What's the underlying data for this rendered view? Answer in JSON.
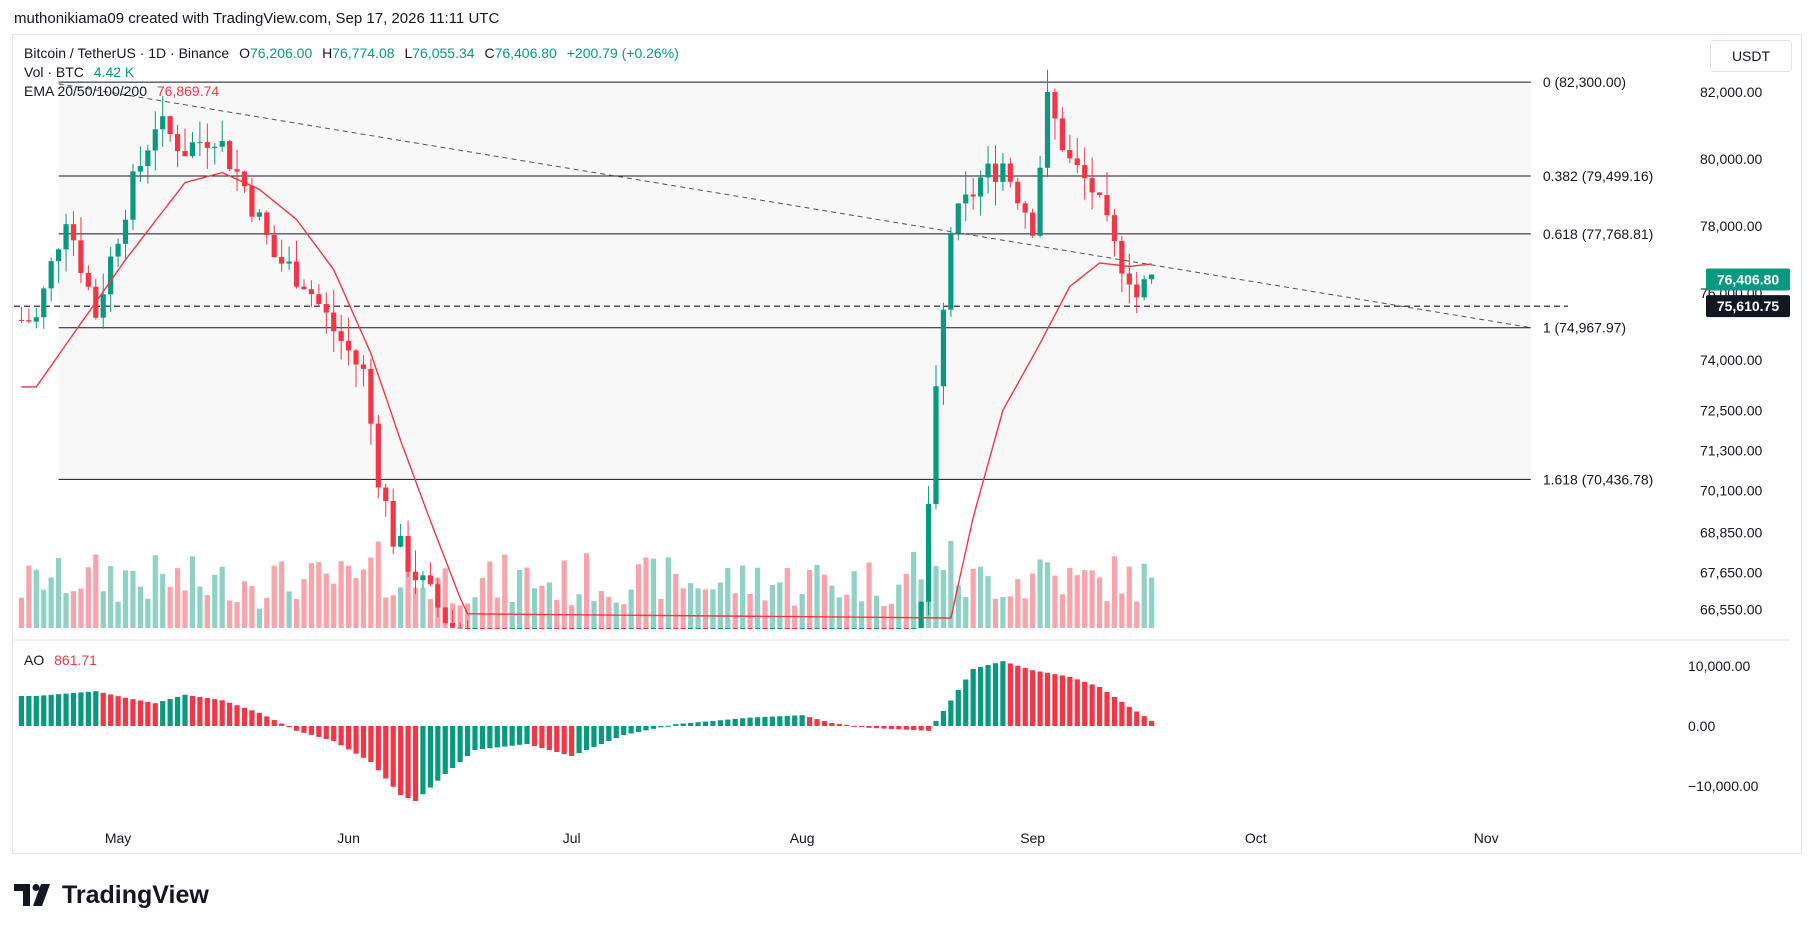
{
  "header": "muthonikiama09 created with TradingView.com, Sep 17, 2026 11:11 UTC",
  "legend": {
    "symbol": "Bitcoin / TetherUS · 1D · Binance",
    "o_label": "O",
    "o_value": "76,206.00",
    "h_label": "H",
    "h_value": "76,774.08",
    "l_label": "L",
    "l_value": "76,055.34",
    "c_label": "C",
    "c_value": "76,406.80",
    "change": "+200.79 (+0.26%)",
    "vol_label": "Vol · BTC",
    "vol_value": "4.42 K",
    "ema_label": "EMA 20/50/100/200",
    "ema_value": "76,869.74",
    "ao_label": "AO",
    "ao_value": "861.71"
  },
  "currency": "USDT",
  "brand": "TradingView",
  "colors": {
    "up": "#089981",
    "down": "#f23645",
    "ema": "#f23645",
    "fib": "#131722",
    "grid": "#f0f3fa"
  },
  "chart_data": {
    "type": "candlestick",
    "price_axis_ticks": [
      "82,000.00",
      "80,000.00",
      "78,000.00",
      "76,000.00",
      "74,000.00",
      "72,500.00",
      "71,300.00",
      "70,100.00",
      "68,850.00",
      "67,650.00",
      "66,550.00"
    ],
    "price_axis_values": [
      82000,
      80000,
      78000,
      76000,
      74000,
      72500,
      71300,
      70100,
      68850,
      67650,
      66550
    ],
    "time_ticks": [
      "May",
      "Jun",
      "Jul",
      "Aug",
      "Sep",
      "Oct",
      "Nov"
    ],
    "last_price": "76,406.80",
    "crosshair_price": "75,610.75",
    "ao_axis_ticks": [
      "10,000.00",
      "0.00",
      "−10,000.00"
    ],
    "ao_axis_values": [
      10000,
      0,
      -10000
    ],
    "fib_levels": [
      {
        "label": "0 (82,300.00)",
        "price": 82300
      },
      {
        "label": "0.382 (79,499.16)",
        "price": 79499.16
      },
      {
        "label": "0.618 (77,768.81)",
        "price": 77768.81
      },
      {
        "label": "1 (74,967.97)",
        "price": 74967.97
      },
      {
        "label": "1.618 (70,436.78)",
        "price": 70436.78
      }
    ],
    "trendline": {
      "from": {
        "date": "2026-04-23",
        "price": 82250
      },
      "to": {
        "date": "2026-11-07",
        "price": 74970
      }
    },
    "crosshair_level": 75610.75,
    "close_anchors": [
      [
        "2026-04-20",
        75200
      ],
      [
        "2026-04-24",
        78400
      ],
      [
        "2026-04-28",
        75400
      ],
      [
        "2026-05-02",
        78600
      ],
      [
        "2026-05-06",
        81100
      ],
      [
        "2026-05-10",
        80300
      ],
      [
        "2026-05-14",
        80800
      ],
      [
        "2026-05-18",
        79200
      ],
      [
        "2026-05-22",
        77100
      ],
      [
        "2026-05-26",
        76400
      ],
      [
        "2026-05-30",
        74900
      ],
      [
        "2026-06-03",
        73600
      ],
      [
        "2026-06-05",
        70600
      ],
      [
        "2026-06-07",
        68700
      ],
      [
        "2026-06-10",
        67600
      ],
      [
        "2026-06-14",
        66300
      ],
      [
        "2026-06-20",
        64800
      ],
      [
        "2026-07-01",
        63500
      ],
      [
        "2026-07-15",
        63000
      ],
      [
        "2026-08-01",
        62700
      ],
      [
        "2026-08-15",
        63300
      ],
      [
        "2026-08-17",
        66600
      ],
      [
        "2026-08-19",
        72800
      ],
      [
        "2026-08-21",
        77900
      ],
      [
        "2026-08-25",
        79400
      ],
      [
        "2026-08-28",
        79900
      ],
      [
        "2026-09-01",
        78100
      ],
      [
        "2026-09-03",
        81700
      ],
      [
        "2026-09-06",
        79900
      ],
      [
        "2026-09-09",
        79100
      ],
      [
        "2026-09-12",
        77300
      ],
      [
        "2026-09-14",
        76600
      ],
      [
        "2026-09-15",
        75900
      ],
      [
        "2026-09-16",
        76206
      ],
      [
        "2026-09-17",
        76406.8
      ]
    ],
    "ema_anchors": [
      [
        "2026-04-20",
        73200
      ],
      [
        "2026-04-26",
        75100
      ],
      [
        "2026-05-02",
        77000
      ],
      [
        "2026-05-10",
        79300
      ],
      [
        "2026-05-15",
        79600
      ],
      [
        "2026-05-20",
        79100
      ],
      [
        "2026-05-25",
        78200
      ],
      [
        "2026-05-30",
        76700
      ],
      [
        "2026-06-04",
        74200
      ],
      [
        "2026-06-08",
        71600
      ],
      [
        "2026-06-12",
        69200
      ],
      [
        "2026-06-16",
        66900
      ],
      [
        "2026-06-20",
        65000
      ],
      [
        "2026-07-05",
        63600
      ],
      [
        "2026-08-15",
        63000
      ],
      [
        "2026-08-20",
        65300
      ],
      [
        "2026-08-24",
        69300
      ],
      [
        "2026-08-28",
        72500
      ],
      [
        "2026-09-02",
        74500
      ],
      [
        "2026-09-06",
        76200
      ],
      [
        "2026-09-10",
        76900
      ],
      [
        "2026-09-14",
        76800
      ],
      [
        "2026-09-17",
        76869.74
      ]
    ],
    "ao_anchors": [
      [
        "2026-04-20",
        5000
      ],
      [
        "2026-04-28",
        5800
      ],
      [
        "2026-05-02",
        4700
      ],
      [
        "2026-05-06",
        3800
      ],
      [
        "2026-05-10",
        5200
      ],
      [
        "2026-05-15",
        4300
      ],
      [
        "2026-05-20",
        2200
      ],
      [
        "2026-05-25",
        -800
      ],
      [
        "2026-05-30",
        -2500
      ],
      [
        "2026-06-04",
        -6000
      ],
      [
        "2026-06-08",
        -11500
      ],
      [
        "2026-06-10",
        -12500
      ],
      [
        "2026-06-14",
        -8000
      ],
      [
        "2026-06-18",
        -4000
      ],
      [
        "2026-06-25",
        -3000
      ],
      [
        "2026-07-01",
        -5000
      ],
      [
        "2026-07-08",
        -1500
      ],
      [
        "2026-07-15",
        300
      ],
      [
        "2026-07-25",
        1400
      ],
      [
        "2026-08-01",
        1800
      ],
      [
        "2026-08-05",
        500
      ],
      [
        "2026-08-10",
        -300
      ],
      [
        "2026-08-18",
        -800
      ],
      [
        "2026-08-20",
        2500
      ],
      [
        "2026-08-24",
        9500
      ],
      [
        "2026-08-28",
        10800
      ],
      [
        "2026-09-01",
        9300
      ],
      [
        "2026-09-06",
        8200
      ],
      [
        "2026-09-10",
        6500
      ],
      [
        "2026-09-14",
        3200
      ],
      [
        "2026-09-17",
        861.71
      ]
    ]
  }
}
